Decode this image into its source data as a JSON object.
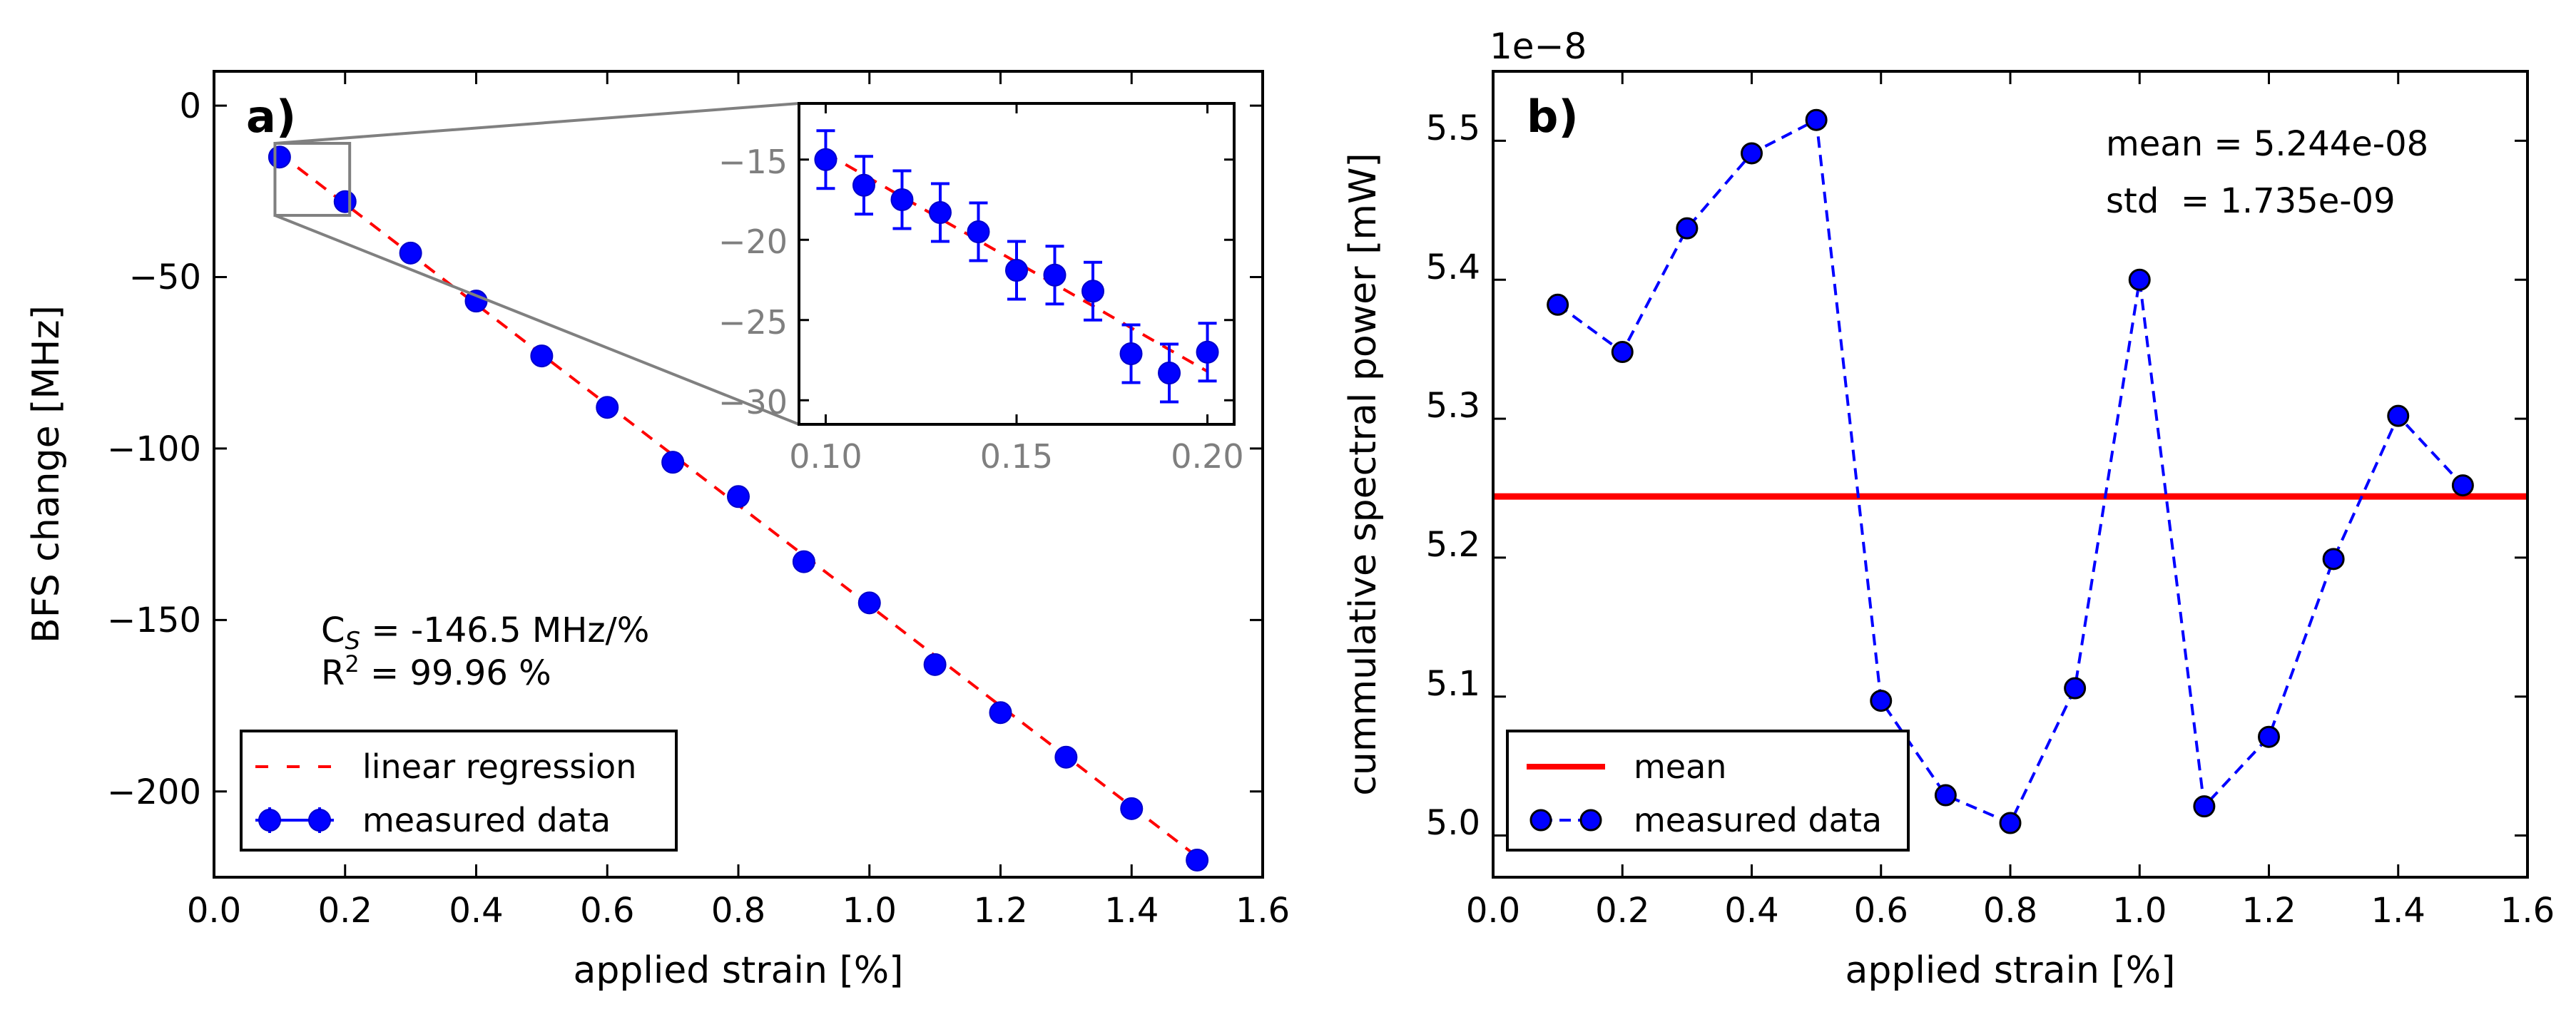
{
  "chart_data": [
    {
      "type": "scatter",
      "panel_label": "a)",
      "xlabel": "applied strain [%]",
      "ylabel": "BFS change [MHz]",
      "xlim": [
        0.0,
        1.6
      ],
      "ylim": [
        -225,
        10
      ],
      "xticks": [
        "0.0",
        "0.2",
        "0.4",
        "0.6",
        "0.8",
        "1.0",
        "1.2",
        "1.4",
        "1.6"
      ],
      "xtick_values": [
        0.0,
        0.2,
        0.4,
        0.6,
        0.8,
        1.0,
        1.2,
        1.4,
        1.6
      ],
      "yticks": [
        "0",
        "−50",
        "−100",
        "−150",
        "−200"
      ],
      "ytick_values": [
        0,
        -50,
        -100,
        -150,
        -200
      ],
      "series": [
        {
          "name": "measured data",
          "style": "markers-with-errorbars",
          "color": "#0000ff",
          "x": [
            0.1,
            0.2,
            0.3,
            0.4,
            0.5,
            0.6,
            0.7,
            0.8,
            0.9,
            1.0,
            1.1,
            1.2,
            1.3,
            1.4,
            1.5
          ],
          "y": [
            -15,
            -28,
            -43,
            -57,
            -73,
            -88,
            -104,
            -114,
            -133,
            -145,
            -163,
            -177,
            -190,
            -205,
            -220
          ]
        },
        {
          "name": "linear regression",
          "style": "dashed-line",
          "color": "#ff0000",
          "x": [
            0.1,
            1.5
          ],
          "y": [
            -14,
            -219
          ]
        }
      ],
      "legend_entries": [
        "linear regression",
        "measured data"
      ],
      "legend_position": "lower-left",
      "annotation": {
        "cs_prefix": "C",
        "cs_sub": "S",
        "cs_value": " = -146.5 MHz/%",
        "r_prefix": "R",
        "r_sup": "2",
        "r_value": " = 99.96 %"
      },
      "inset": {
        "xlim": [
          0.093,
          0.207
        ],
        "ylim": [
          -31.5,
          -11.5
        ],
        "xticks": [
          "0.10",
          "0.15",
          "0.20"
        ],
        "xtick_values": [
          0.1,
          0.15,
          0.2
        ],
        "yticks": [
          "−15",
          "−20",
          "−25",
          "−30"
        ],
        "ytick_values": [
          -15,
          -20,
          -25,
          -30
        ],
        "x": [
          0.1,
          0.11,
          0.12,
          0.13,
          0.14,
          0.15,
          0.16,
          0.17,
          0.18,
          0.19,
          0.2
        ],
        "y": [
          -15,
          -16.6,
          -17.5,
          -18.3,
          -19.5,
          -21.9,
          -22.2,
          -23.2,
          -27.1,
          -28.3,
          -27.0
        ],
        "yerr": [
          1.8,
          1.8,
          1.8,
          1.8,
          1.8,
          1.8,
          1.8,
          1.8,
          1.8,
          1.8,
          1.8
        ],
        "fit_x": [
          0.1,
          0.2
        ],
        "fit_y": [
          -14.6,
          -28.2
        ],
        "zoom_box": {
          "x": [
            0.093,
            0.207
          ],
          "y": [
            -32,
            -11
          ]
        }
      }
    },
    {
      "type": "line",
      "panel_label": "b)",
      "xlabel": "applied strain [%]",
      "ylabel": "cummulative spectral power [mW]",
      "offset_text": "1e−8",
      "xlim": [
        0.0,
        1.6
      ],
      "ylim": [
        4.97,
        5.55
      ],
      "xticks": [
        "0.0",
        "0.2",
        "0.4",
        "0.6",
        "0.8",
        "1.0",
        "1.2",
        "1.4",
        "1.6"
      ],
      "xtick_values": [
        0.0,
        0.2,
        0.4,
        0.6,
        0.8,
        1.0,
        1.2,
        1.4,
        1.6
      ],
      "yticks": [
        "5.0",
        "5.1",
        "5.2",
        "5.3",
        "5.4",
        "5.5"
      ],
      "ytick_values": [
        5.0,
        5.1,
        5.2,
        5.3,
        5.4,
        5.5
      ],
      "series": [
        {
          "name": "measured data",
          "style": "dashed-line-with-markers",
          "color": "#0000ff",
          "x": [
            0.1,
            0.2,
            0.3,
            0.4,
            0.5,
            0.6,
            0.7,
            0.8,
            0.9,
            1.0,
            1.1,
            1.2,
            1.3,
            1.4,
            1.5
          ],
          "y": [
            5.382,
            5.348,
            5.437,
            5.491,
            5.515,
            5.097,
            5.029,
            5.009,
            5.106,
            5.4,
            5.021,
            5.071,
            5.199,
            5.302,
            5.252
          ]
        },
        {
          "name": "mean",
          "style": "solid-line",
          "color": "#ff0000",
          "value": 5.244
        }
      ],
      "legend_entries": [
        "mean",
        "measured data"
      ],
      "legend_position": "lower-left",
      "stats_text": [
        "mean = 5.244e-08",
        "std  = 1.735e-09"
      ]
    }
  ]
}
